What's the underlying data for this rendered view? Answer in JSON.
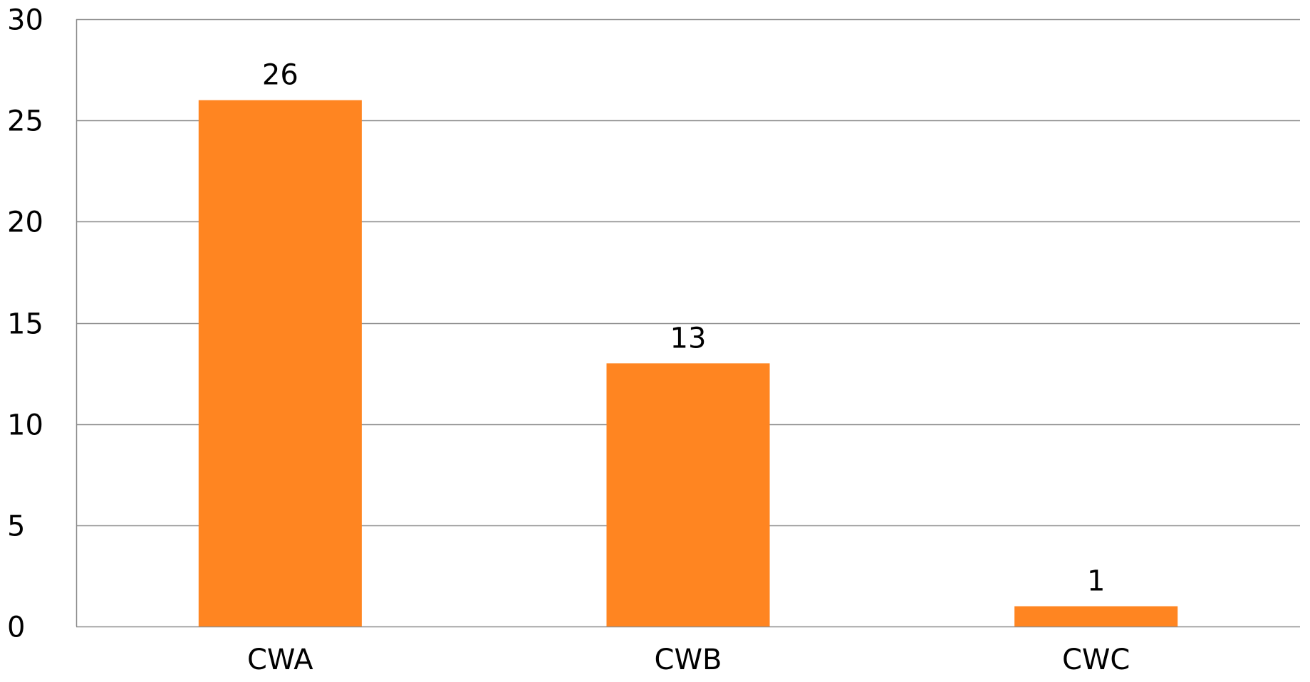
{
  "chart_data": {
    "type": "bar",
    "categories": [
      "CWA",
      "CWB",
      "CWC"
    ],
    "values": [
      26,
      13,
      1
    ],
    "data_labels": [
      "26",
      "13",
      "1"
    ],
    "yticks": [
      0,
      5,
      10,
      15,
      20,
      25,
      30
    ],
    "ytick_labels": [
      "0",
      "5",
      "10",
      "15",
      "20",
      "25",
      "30"
    ],
    "ylim": [
      0,
      30
    ],
    "grid": true,
    "legend": "none",
    "bar_color": "#FF8521",
    "gridline_color": "#8C8C8C"
  }
}
